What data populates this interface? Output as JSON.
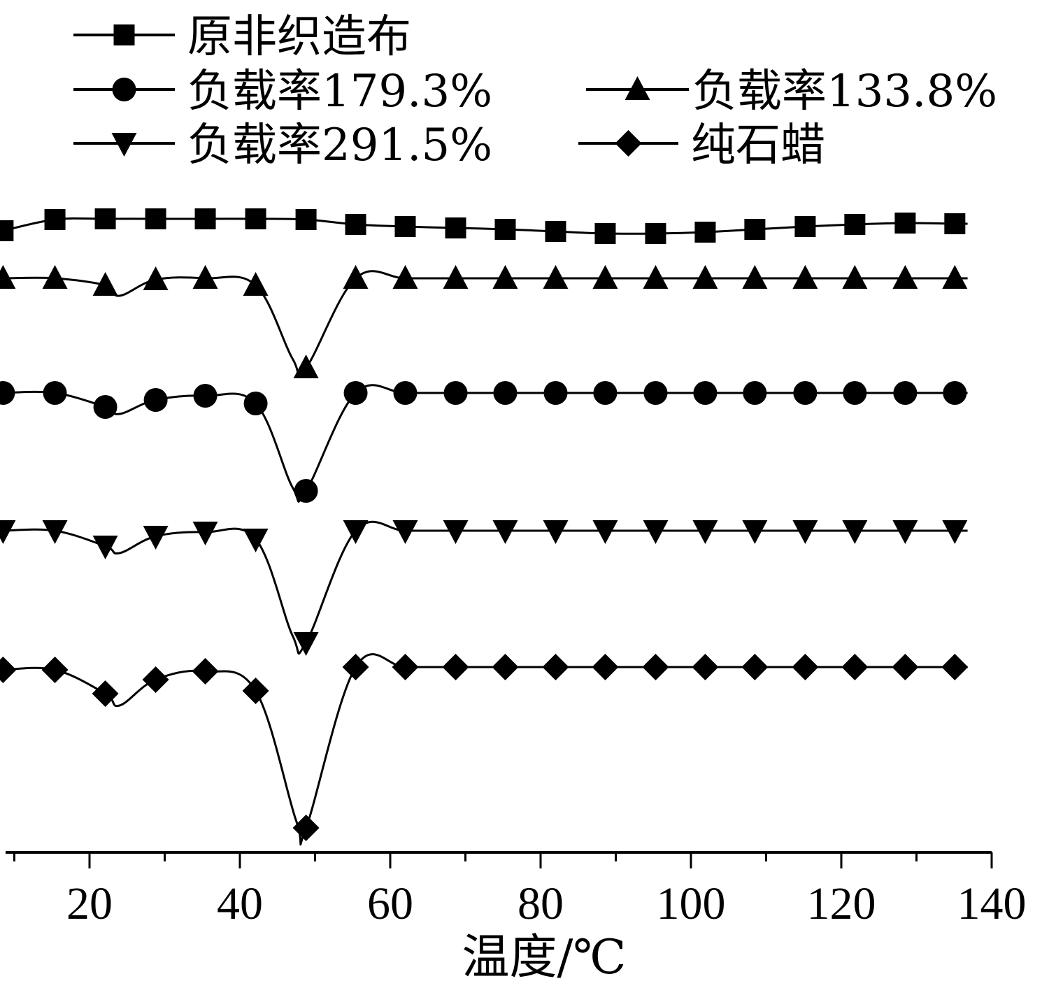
{
  "chart_data": {
    "type": "line",
    "xlabel": "温度/℃",
    "ylabel": "",
    "xlim": [
      7,
      141
    ],
    "x_ticks": [
      20,
      40,
      60,
      80,
      100,
      120,
      140
    ],
    "marker_x": [
      8.5,
      15.4,
      22.1,
      28.8,
      35.4,
      42.1,
      48.8,
      55.4,
      62.0,
      68.7,
      75.3,
      82.0,
      88.6,
      95.3,
      101.9,
      108.5,
      115.2,
      121.8,
      128.5,
      135.1
    ],
    "grid": false,
    "legend_placement": "top",
    "series": [
      {
        "name": "原非织造布",
        "marker": "square",
        "offset": 316,
        "values": [
          -14,
          2,
          3,
          3,
          3,
          3,
          2,
          -5,
          -8,
          -10,
          -12,
          -15,
          -18,
          -18,
          -16,
          -12,
          -8,
          -5,
          -3,
          -4
        ]
      },
      {
        "name": "负载率179.3%",
        "marker": "circle",
        "offset": 562,
        "values": [
          0,
          0,
          -20,
          -10,
          -4,
          -15,
          -140,
          0,
          0,
          0,
          0,
          0,
          0,
          0,
          0,
          0,
          0,
          0,
          0,
          0
        ]
      },
      {
        "name": "负载率133.8%",
        "marker": "triangle-up",
        "offset": 398,
        "values": [
          0,
          0,
          -10,
          -2,
          0,
          -10,
          -128,
          0,
          0,
          0,
          0,
          0,
          0,
          0,
          0,
          0,
          0,
          0,
          0,
          0
        ]
      },
      {
        "name": "负载率291.5%",
        "marker": "triangle-down",
        "offset": 759,
        "values": [
          0,
          0,
          -22,
          -8,
          -2,
          -12,
          -160,
          0,
          0,
          0,
          0,
          0,
          0,
          0,
          0,
          0,
          0,
          0,
          0,
          0
        ]
      },
      {
        "name": "纯石蜡",
        "marker": "diamond",
        "offset": 954,
        "values": [
          -4,
          -4,
          -38,
          -18,
          -6,
          -34,
          -230,
          0,
          0,
          0,
          0,
          0,
          0,
          0,
          0,
          0,
          0,
          0,
          0,
          0
        ]
      }
    ],
    "dips": [
      {
        "series": 0,
        "x": [],
        "values": []
      },
      {
        "series": 1,
        "x": [
          24,
          47
        ],
        "values": [
          -30,
          -135
        ]
      },
      {
        "series": 2,
        "x": [
          24,
          47
        ],
        "values": [
          -25,
          -115
        ]
      },
      {
        "series": 3,
        "x": [
          24,
          47
        ],
        "values": [
          -32,
          -150
        ]
      },
      {
        "series": 4,
        "x": [
          24,
          47.5
        ],
        "values": [
          -55,
          -220
        ]
      }
    ]
  }
}
